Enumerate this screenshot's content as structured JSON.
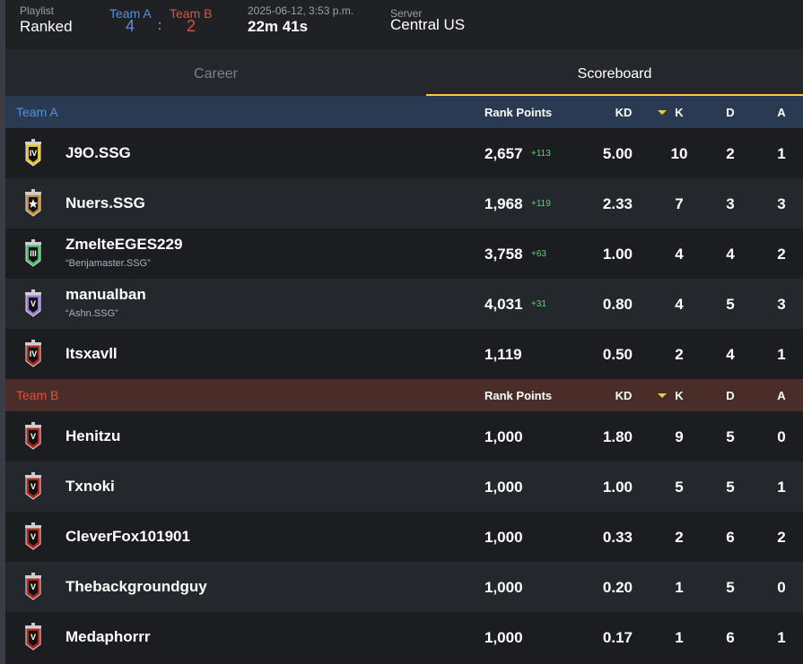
{
  "header": {
    "playlist_label": "Playlist",
    "playlist": "Ranked",
    "team_a": {
      "name": "Team A",
      "score": "4"
    },
    "separator": ":",
    "team_b": {
      "name": "Team B",
      "score": "2"
    },
    "date": "2025-06-12, 3:53 p.m.",
    "duration": "22m 41s",
    "server_label": "Server",
    "server": "Central US"
  },
  "tabs": [
    "Career",
    "Scoreboard"
  ],
  "teams": [
    {
      "name": "Team A",
      "color": "#5b8fd6",
      "header_bg": "#2a3a52",
      "columns": [
        "Rank Points",
        "KD",
        "K",
        "D",
        "A"
      ],
      "players": [
        {
          "badge": "IV",
          "badge_color": "#e8c42a",
          "name": "J9O.SSG",
          "rank_points": "2,657",
          "delta": "+113",
          "kd": "5.00",
          "k": "10",
          "d": "2",
          "a": "1"
        },
        {
          "badge_color": "#c08a3e",
          "name": "Nuers.SSG",
          "rank_points": "1,968",
          "delta": "+119",
          "kd": "2.33",
          "k": "7",
          "d": "3",
          "a": "3"
        },
        {
          "badge": "III",
          "badge_color": "#3fbf6a",
          "name": "ZmelteEGES229",
          "alias": "“Benjamaster.SSG”",
          "rank_points": "3,758",
          "delta": "+63",
          "kd": "1.00",
          "k": "4",
          "d": "4",
          "a": "2"
        },
        {
          "badge": "V",
          "badge_color": "#9b7ad8",
          "name": "manualban",
          "alias": "“Ashn.SSG”",
          "rank_points": "4,031",
          "delta": "+31",
          "kd": "0.80",
          "k": "4",
          "d": "5",
          "a": "3"
        },
        {
          "badge": "IV",
          "badge_color": "#b3261e",
          "name": "Itsxavll",
          "rank_points": "1,119",
          "kd": "0.50",
          "k": "2",
          "d": "4",
          "a": "1"
        }
      ]
    },
    {
      "name": "Team B",
      "color": "#d9553f",
      "header_bg": "#4a2d28",
      "columns": [
        "Rank Points",
        "KD",
        "K",
        "D",
        "A"
      ],
      "players": [
        {
          "badge": "V",
          "badge_color": "#b3261e",
          "name": "Henitzu",
          "rank_points": "1,000",
          "kd": "1.80",
          "k": "9",
          "d": "5",
          "a": "0"
        },
        {
          "badge": "V",
          "badge_color": "#b3261e",
          "name": "Txnoki",
          "rank_points": "1,000",
          "kd": "1.00",
          "k": "5",
          "d": "5",
          "a": "1"
        },
        {
          "badge": "V",
          "badge_color": "#b3261e",
          "name": "CleverFox101901",
          "rank_points": "1,000",
          "kd": "0.33",
          "k": "2",
          "d": "6",
          "a": "2"
        },
        {
          "badge": "V",
          "badge_color": "#b3261e",
          "name": "Thebackgroundguy",
          "rank_points": "1,000",
          "kd": "0.20",
          "k": "1",
          "d": "5",
          "a": "0"
        },
        {
          "badge": "V",
          "badge_color": "#b3261e",
          "name": "Medaphorrr",
          "rank_points": "1,000",
          "kd": "0.17",
          "k": "1",
          "d": "6",
          "a": "1"
        }
      ]
    }
  ]
}
